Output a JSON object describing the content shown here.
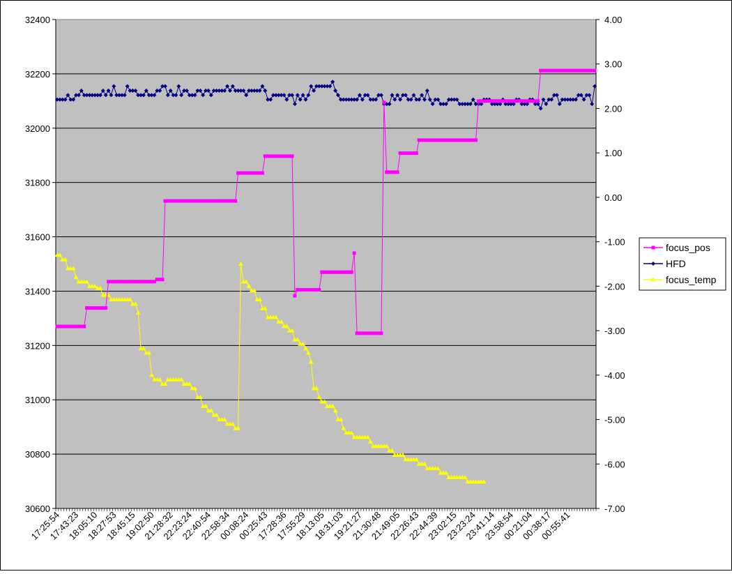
{
  "chart_data": {
    "type": "line",
    "title": "",
    "xlabel": "",
    "y_left_label": "",
    "y_right_label": "",
    "y_left_range": [
      30600,
      32400
    ],
    "y_left_ticks": [
      30600,
      30800,
      31000,
      31200,
      31400,
      31600,
      31800,
      32000,
      32200,
      32400
    ],
    "y_right_range": [
      -7,
      4
    ],
    "y_right_ticks": [
      "-7.00",
      "-6.00",
      "-5.00",
      "-4.00",
      "-3.00",
      "-2.00",
      "-1.00",
      "0.00",
      "1.00",
      "2.00",
      "3.00",
      "4.00"
    ],
    "y_right_tick_values": [
      -7,
      -6,
      -5,
      -4,
      -3,
      -2,
      -1,
      0,
      1,
      2,
      3,
      4
    ],
    "grid": "horizontal",
    "plot_background": "#c0c0c0",
    "legend_position": "right",
    "n_points": 200,
    "x_tick_labels": [
      "17:25:54",
      "17:43:23",
      "18:05:10",
      "18:27:53",
      "18:45:15",
      "19:02:50",
      "21:28:32",
      "22:23:24",
      "22:40:54",
      "22:58:34",
      "00:08:24",
      "00:25:43",
      "17:28:36",
      "17:55:29",
      "18:13:05",
      "18:31:03",
      "19:21:27",
      "21:30:48",
      "21:49:05",
      "22:26:43",
      "22:44:39",
      "23:02:15",
      "23:23:24",
      "23:41:14",
      "23:58:54",
      "00:21:04",
      "00:38:17",
      "00:55:41"
    ],
    "x_tick_indices": [
      0,
      7,
      14,
      21,
      28,
      35,
      42,
      49,
      56,
      63,
      70,
      77,
      84,
      91,
      98,
      105,
      112,
      119,
      126,
      133,
      140,
      147,
      154,
      161,
      168,
      175,
      182,
      189
    ],
    "series": [
      {
        "name": "focus_pos",
        "axis": "left",
        "color": "#ff00ff",
        "marker": "square",
        "points": [
          [
            0,
            31270
          ],
          [
            10,
            31270
          ],
          [
            11,
            31338
          ],
          [
            18,
            31338
          ],
          [
            19,
            31435
          ],
          [
            36,
            31435
          ],
          [
            37,
            31443
          ],
          [
            39,
            31443
          ],
          [
            40,
            31732
          ],
          [
            66,
            31732
          ],
          [
            67,
            31835
          ],
          [
            76,
            31835
          ],
          [
            77,
            31897
          ],
          [
            87,
            31897
          ],
          [
            88,
            31383
          ],
          [
            89,
            31405
          ],
          [
            97,
            31405
          ],
          [
            98,
            31470
          ],
          [
            109,
            31470
          ],
          [
            110,
            31540
          ],
          [
            111,
            31245
          ],
          [
            120,
            31245
          ],
          [
            121,
            32095
          ],
          [
            122,
            31838
          ],
          [
            126,
            31838
          ],
          [
            127,
            31908
          ],
          [
            133,
            31908
          ],
          [
            134,
            31956
          ],
          [
            155,
            31956
          ],
          [
            156,
            32100
          ],
          [
            178,
            32100
          ],
          [
            179,
            32212
          ],
          [
            199,
            32212
          ]
        ]
      },
      {
        "name": "HFD",
        "axis": "right",
        "color": "#000080",
        "marker": "diamond",
        "points": [
          [
            0,
            2.2
          ],
          [
            3,
            2.2
          ],
          [
            4,
            2.3
          ],
          [
            5,
            2.2
          ],
          [
            7,
            2.3
          ],
          [
            8,
            2.3
          ],
          [
            9,
            2.4
          ],
          [
            10,
            2.3
          ],
          [
            16,
            2.3
          ],
          [
            17,
            2.4
          ],
          [
            18,
            2.3
          ],
          [
            19,
            2.4
          ],
          [
            20,
            2.3
          ],
          [
            21,
            2.5
          ],
          [
            22,
            2.3
          ],
          [
            25,
            2.3
          ],
          [
            26,
            2.5
          ],
          [
            27,
            2.4
          ],
          [
            29,
            2.4
          ],
          [
            30,
            2.3
          ],
          [
            32,
            2.3
          ],
          [
            33,
            2.4
          ],
          [
            34,
            2.3
          ],
          [
            36,
            2.3
          ],
          [
            37,
            2.4
          ],
          [
            39,
            2.5
          ],
          [
            40,
            2.5
          ],
          [
            41,
            2.3
          ],
          [
            42,
            2.4
          ],
          [
            43,
            2.3
          ],
          [
            44,
            2.3
          ],
          [
            45,
            2.5
          ],
          [
            46,
            2.3
          ],
          [
            47,
            2.4
          ],
          [
            48,
            2.4
          ],
          [
            49,
            2.3
          ],
          [
            51,
            2.3
          ],
          [
            52,
            2.4
          ],
          [
            54,
            2.3
          ],
          [
            55,
            2.4
          ],
          [
            56,
            2.4
          ],
          [
            57,
            2.3
          ],
          [
            58,
            2.4
          ],
          [
            62,
            2.4
          ],
          [
            63,
            2.5
          ],
          [
            64,
            2.4
          ],
          [
            65,
            2.5
          ],
          [
            66,
            2.4
          ],
          [
            69,
            2.4
          ],
          [
            70,
            2.3
          ],
          [
            71,
            2.4
          ],
          [
            75,
            2.4
          ],
          [
            76,
            2.5
          ],
          [
            77,
            2.4
          ],
          [
            78,
            2.2
          ],
          [
            79,
            2.2
          ],
          [
            80,
            2.3
          ],
          [
            84,
            2.3
          ],
          [
            85,
            2.2
          ],
          [
            86,
            2.3
          ],
          [
            87,
            2.3
          ],
          [
            88,
            2.1
          ],
          [
            89,
            2.3
          ],
          [
            90,
            2.2
          ],
          [
            91,
            2.3
          ],
          [
            92,
            2.2
          ],
          [
            93,
            2.3
          ],
          [
            94,
            2.5
          ],
          [
            95,
            2.4
          ],
          [
            96,
            2.5
          ],
          [
            101,
            2.5
          ],
          [
            102,
            2.6
          ],
          [
            103,
            2.4
          ],
          [
            104,
            2.3
          ],
          [
            105,
            2.2
          ],
          [
            111,
            2.2
          ],
          [
            112,
            2.3
          ],
          [
            113,
            2.2
          ],
          [
            114,
            2.3
          ],
          [
            115,
            2.3
          ],
          [
            116,
            2.2
          ],
          [
            118,
            2.2
          ],
          [
            119,
            2.3
          ],
          [
            120,
            2.3
          ],
          [
            121,
            2.1
          ],
          [
            123,
            2.1
          ],
          [
            124,
            2.3
          ],
          [
            125,
            2.2
          ],
          [
            126,
            2.3
          ],
          [
            127,
            2.2
          ],
          [
            128,
            2.3
          ],
          [
            129,
            2.3
          ],
          [
            130,
            2.2
          ],
          [
            131,
            2.2
          ],
          [
            132,
            2.3
          ],
          [
            133,
            2.2
          ],
          [
            134,
            2.2
          ],
          [
            135,
            2.3
          ],
          [
            136,
            2.2
          ],
          [
            137,
            2.4
          ],
          [
            138,
            2.2
          ],
          [
            139,
            2.1
          ],
          [
            140,
            2.2
          ],
          [
            141,
            2.2
          ],
          [
            142,
            2.1
          ],
          [
            144,
            2.1
          ],
          [
            145,
            2.2
          ],
          [
            148,
            2.2
          ],
          [
            149,
            2.1
          ],
          [
            153,
            2.1
          ],
          [
            154,
            2.2
          ],
          [
            155,
            2.1
          ],
          [
            157,
            2.1
          ],
          [
            158,
            2.2
          ],
          [
            160,
            2.2
          ],
          [
            161,
            2.1
          ],
          [
            164,
            2.1
          ],
          [
            165,
            2.2
          ],
          [
            166,
            2.1
          ],
          [
            169,
            2.1
          ],
          [
            170,
            2.2
          ],
          [
            171,
            2.2
          ],
          [
            172,
            2.1
          ],
          [
            174,
            2.1
          ],
          [
            175,
            2.2
          ],
          [
            176,
            2.2
          ],
          [
            177,
            2.1
          ],
          [
            178,
            2.1
          ],
          [
            179,
            2.0
          ],
          [
            180,
            2.2
          ],
          [
            181,
            2.1
          ],
          [
            182,
            2.2
          ],
          [
            184,
            2.3
          ],
          [
            186,
            2.1
          ],
          [
            187,
            2.2
          ],
          [
            192,
            2.2
          ],
          [
            193,
            2.3
          ],
          [
            194,
            2.3
          ],
          [
            195,
            2.2
          ],
          [
            196,
            2.3
          ],
          [
            197,
            2.3
          ],
          [
            198,
            2.1
          ],
          [
            199,
            2.5
          ]
        ]
      },
      {
        "name": "focus_temp",
        "axis": "right",
        "color": "#ffff00",
        "marker": "triangle",
        "points": [
          [
            0,
            -1.3
          ],
          [
            2,
            -1.4
          ],
          [
            4,
            -1.6
          ],
          [
            7,
            -1.8
          ],
          [
            8,
            -1.9
          ],
          [
            11,
            -1.9
          ],
          [
            12,
            -2.0
          ],
          [
            15,
            -2.05
          ],
          [
            17,
            -2.2
          ],
          [
            20,
            -2.3
          ],
          [
            25,
            -2.3
          ],
          [
            28,
            -2.4
          ],
          [
            30,
            -2.6
          ],
          [
            31,
            -3.4
          ],
          [
            33,
            -3.5
          ],
          [
            35,
            -4.0
          ],
          [
            36,
            -4.1
          ],
          [
            39,
            -4.2
          ],
          [
            41,
            -4.1
          ],
          [
            43,
            -4.1
          ],
          [
            47,
            -4.2
          ],
          [
            50,
            -4.3
          ],
          [
            52,
            -4.5
          ],
          [
            54,
            -4.7
          ],
          [
            56,
            -4.8
          ],
          [
            58,
            -4.9
          ],
          [
            60,
            -5.0
          ],
          [
            63,
            -5.1
          ],
          [
            66,
            -5.2
          ],
          [
            67,
            -5.2
          ],
          [
            68,
            -1.5
          ],
          [
            69,
            -1.9
          ],
          [
            71,
            -2.0
          ],
          [
            72,
            -2.1
          ],
          [
            74,
            -2.3
          ],
          [
            76,
            -2.5
          ],
          [
            78,
            -2.7
          ],
          [
            82,
            -2.8
          ],
          [
            84,
            -2.9
          ],
          [
            86,
            -3.0
          ],
          [
            88,
            -3.2
          ],
          [
            90,
            -3.3
          ],
          [
            92,
            -3.4
          ],
          [
            93,
            -3.5
          ],
          [
            94,
            -3.7
          ],
          [
            95,
            -4.3
          ],
          [
            97,
            -4.5
          ],
          [
            98,
            -4.6
          ],
          [
            100,
            -4.7
          ],
          [
            103,
            -4.8
          ],
          [
            104,
            -5.0
          ],
          [
            106,
            -5.2
          ],
          [
            107,
            -5.3
          ],
          [
            110,
            -5.4
          ],
          [
            115,
            -5.4
          ],
          [
            116,
            -5.5
          ],
          [
            117,
            -5.6
          ],
          [
            121,
            -5.6
          ],
          [
            123,
            -5.7
          ],
          [
            125,
            -5.8
          ],
          [
            128,
            -5.8
          ],
          [
            129,
            -5.9
          ],
          [
            133,
            -5.9
          ],
          [
            134,
            -6.0
          ],
          [
            137,
            -6.1
          ],
          [
            141,
            -6.1
          ],
          [
            142,
            -6.2
          ],
          [
            145,
            -6.3
          ],
          [
            151,
            -6.3
          ],
          [
            152,
            -6.4
          ],
          [
            158,
            -6.4
          ]
        ]
      }
    ]
  }
}
